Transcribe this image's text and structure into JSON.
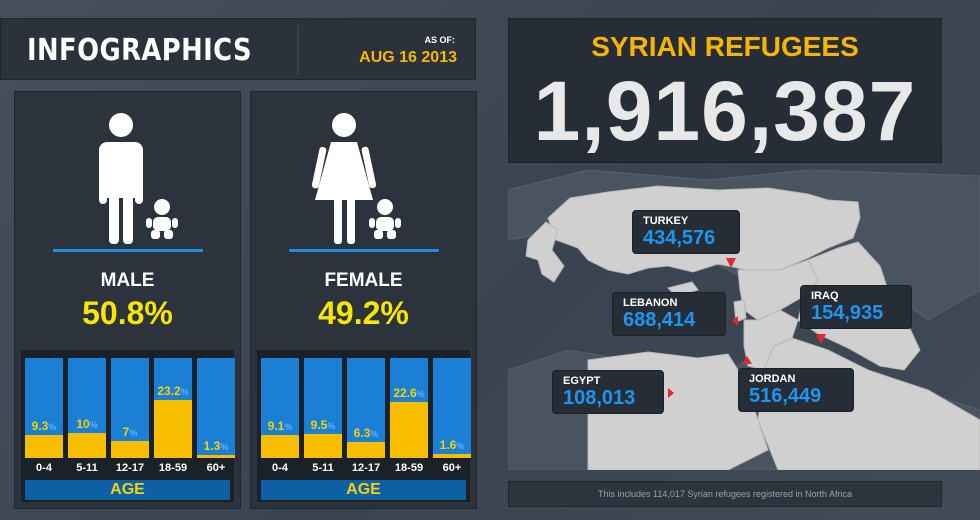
{
  "header": {
    "title": "INFOGRAPHICS",
    "as_of_label": "AS OF:",
    "date": "AUG 16 2013"
  },
  "total": {
    "title": "SYRIAN REFUGEES",
    "value": "1,916,387"
  },
  "male": {
    "label": "MALE",
    "percent": "50.8%",
    "ages": [
      {
        "cat": "0-4",
        "val": "9.3",
        "num": 9.3
      },
      {
        "cat": "5-11",
        "val": "10",
        "num": 10
      },
      {
        "cat": "12-17",
        "val": "7",
        "num": 7
      },
      {
        "cat": "18-59",
        "val": "23.2",
        "num": 23.2
      },
      {
        "cat": "60+",
        "val": "1.3",
        "num": 1.3
      }
    ],
    "age_label": "AGE"
  },
  "female": {
    "label": "FEMALE",
    "percent": "49.2%",
    "ages": [
      {
        "cat": "0-4",
        "val": "9.1",
        "num": 9.1
      },
      {
        "cat": "5-11",
        "val": "9.5",
        "num": 9.5
      },
      {
        "cat": "12-17",
        "val": "6.3",
        "num": 6.3
      },
      {
        "cat": "18-59",
        "val": "22.6",
        "num": 22.6
      },
      {
        "cat": "60+",
        "val": "1.6",
        "num": 1.6
      }
    ],
    "age_label": "AGE"
  },
  "percent_sign": "%",
  "countries": {
    "turkey": {
      "name": "TURKEY",
      "value": "434,576"
    },
    "lebanon": {
      "name": "LEBANON",
      "value": "688,414"
    },
    "iraq": {
      "name": "IRAQ",
      "value": "154,935"
    },
    "egypt": {
      "name": "EGYPT",
      "value": "108,013"
    },
    "jordan": {
      "name": "JORDAN",
      "value": "516,449"
    }
  },
  "note": "This includes 114,017 Syrian refugees registered in North Africa",
  "colors": {
    "accent_yellow": "#f7e600",
    "bar_blue": "#1a7fd5",
    "bar_yellow": "#f7be00",
    "value_blue": "#1e95f2"
  }
}
